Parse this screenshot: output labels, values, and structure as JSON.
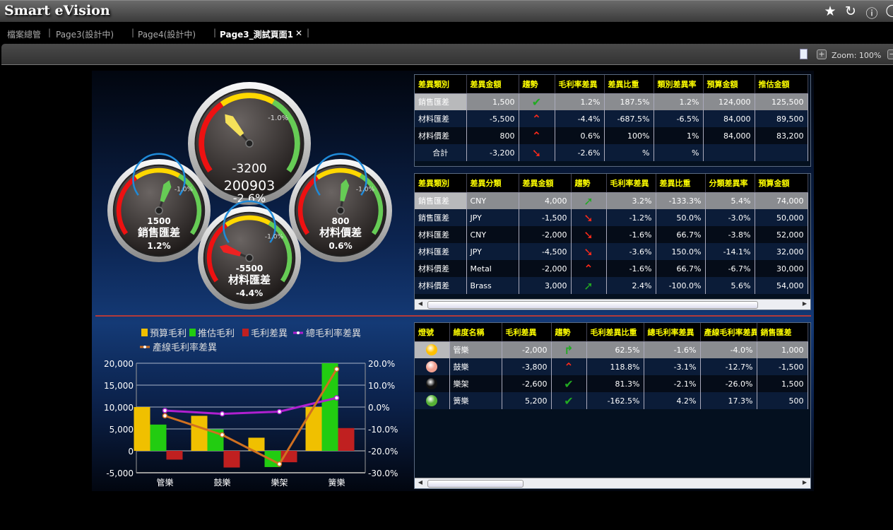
{
  "app": {
    "title": "Smart eVision",
    "icons": [
      "star-icon",
      "refresh-icon",
      "help-icon"
    ]
  },
  "tabs": [
    {
      "label": "檔案總管"
    },
    {
      "label": "Page3(設計中)"
    },
    {
      "label": "Page4(設計中)"
    },
    {
      "label": "Page3_測試頁面1",
      "active": true,
      "close": "✕"
    }
  ],
  "toolbar": {
    "zoom_label": "Zoom: 100%",
    "plus": "+",
    "minus": "−"
  },
  "colors": {
    "accent_yellow": "#ffff00",
    "up_green": "#22aa22",
    "down_red": "#ff2a1a",
    "divider": "#b43a3a"
  },
  "gauges": [
    {
      "id": "total",
      "value": "-3200",
      "label": "200903",
      "pct": "-2.6%",
      "marker": "-1.0%",
      "needle_value": -3200,
      "needle_color": "#f5e15a"
    },
    {
      "id": "sales",
      "value": "1500",
      "label": "銷售匯差",
      "pct": "1.2%",
      "marker": "-1.0%",
      "needle_value": 1500,
      "needle_color": "#66cc55"
    },
    {
      "id": "mat-price",
      "value": "800",
      "label": "材料價差",
      "pct": "0.6%",
      "marker": "-1.0%",
      "needle_value": 800,
      "needle_color": "#66cc55"
    },
    {
      "id": "mat-fx",
      "value": "-5500",
      "label": "材料匯差",
      "pct": "-4.4%",
      "marker": "-1.0%",
      "needle_value": -5500,
      "needle_color": "#ee2222"
    }
  ],
  "table1": {
    "headers": [
      "差異類別",
      "差異金額",
      "趨勢",
      "毛利率差異",
      "差異比重",
      "類別差異率",
      "預算金額",
      "推估金額"
    ],
    "rows": [
      [
        "銷售匯差",
        "1,500",
        "check-up",
        "1.2%",
        "187.5%",
        "1.2%",
        "124,000",
        "125,500"
      ],
      [
        "材料匯差",
        "-5,500",
        "peak-down",
        "-4.4%",
        "-687.5%",
        "-6.5%",
        "84,000",
        "89,500"
      ],
      [
        "材料價差",
        "800",
        "peak-down",
        "0.6%",
        "100%",
        "1%",
        "84,000",
        "83,200"
      ],
      [
        "合計",
        "-3,200",
        "down",
        "-2.6%",
        "%",
        "%",
        "",
        ""
      ]
    ]
  },
  "table2": {
    "headers": [
      "差異類別",
      "差異分類",
      "差異金額",
      "趨勢",
      "毛利率差異",
      "差異比重",
      "分類差異率",
      "預算金額"
    ],
    "rows": [
      [
        "銷售匯差",
        "CNY",
        "4,000",
        "up",
        "3.2%",
        "-133.3%",
        "5.4%",
        "74,000"
      ],
      [
        "銷售匯差",
        "JPY",
        "-1,500",
        "down",
        "-1.2%",
        "50.0%",
        "-3.0%",
        "50,000"
      ],
      [
        "材料匯差",
        "CNY",
        "-2,000",
        "down",
        "-1.6%",
        "66.7%",
        "-3.8%",
        "52,000"
      ],
      [
        "材料匯差",
        "JPY",
        "-4,500",
        "down",
        "-3.6%",
        "150.0%",
        "-14.1%",
        "32,000"
      ],
      [
        "材料價差",
        "Metal",
        "-2,000",
        "peak-down",
        "-1.6%",
        "66.7%",
        "-6.7%",
        "30,000"
      ],
      [
        "材料價差",
        "Brass",
        "3,000",
        "up",
        "2.4%",
        "-100.0%",
        "5.6%",
        "54,000"
      ]
    ]
  },
  "table3": {
    "headers": [
      "燈號",
      "維度名稱",
      "毛利差異",
      "趨勢",
      "毛利差異比重",
      "總毛利率差異",
      "產線毛利率差異",
      "銷售匯差"
    ],
    "rows": [
      [
        "#ffc000",
        "管樂",
        "-2,000",
        "turn-right",
        "62.5%",
        "-1.6%",
        "-4.0%",
        "1,000"
      ],
      [
        "#f0a090",
        "鼓樂",
        "-3,800",
        "peak-down",
        "118.8%",
        "-3.1%",
        "-12.7%",
        "-1,500"
      ],
      [
        "#111111",
        "樂架",
        "-2,600",
        "check-up",
        "81.3%",
        "-2.1%",
        "-26.0%",
        "1,500"
      ],
      [
        "#55b035",
        "簧樂",
        "5,200",
        "check-up",
        "-162.5%",
        "4.2%",
        "17.3%",
        "500"
      ]
    ]
  },
  "chart_data": {
    "type": "bar",
    "categories": [
      "管樂",
      "鼓樂",
      "樂架",
      "簧樂"
    ],
    "series": [
      {
        "name": "預算毛利",
        "kind": "bar",
        "axis": "left",
        "color": "#f0c000",
        "values": [
          10000,
          8000,
          3000,
          10000
        ]
      },
      {
        "name": "推估毛利",
        "kind": "bar",
        "axis": "left",
        "color": "#22cc11",
        "values": [
          6000,
          4900,
          -3700,
          20000
        ]
      },
      {
        "name": "毛利差異",
        "kind": "bar",
        "axis": "left",
        "color": "#c02020",
        "values": [
          -2000,
          -3800,
          -2600,
          5200
        ]
      },
      {
        "name": "總毛利率差異",
        "kind": "line",
        "axis": "right",
        "color": "#b020d0",
        "values": [
          -1.6,
          -3.1,
          -2.1,
          4.2
        ]
      },
      {
        "name": "產線毛利率差異",
        "kind": "line",
        "axis": "right",
        "color": "#d07020",
        "values": [
          -4.0,
          -12.7,
          -26.0,
          17.3
        ]
      }
    ],
    "y_left": {
      "range": [
        -5000,
        20000
      ],
      "ticks": [
        "-5,000",
        "0",
        "5,000",
        "10,000",
        "15,000",
        "20,000"
      ]
    },
    "y_right": {
      "range": [
        -30,
        20
      ],
      "ticks": [
        "-30.0%",
        "-20.0%",
        "-10.0%",
        "0.0%",
        "10.0%",
        "20.0%"
      ]
    },
    "grid": true,
    "legend": "top"
  }
}
